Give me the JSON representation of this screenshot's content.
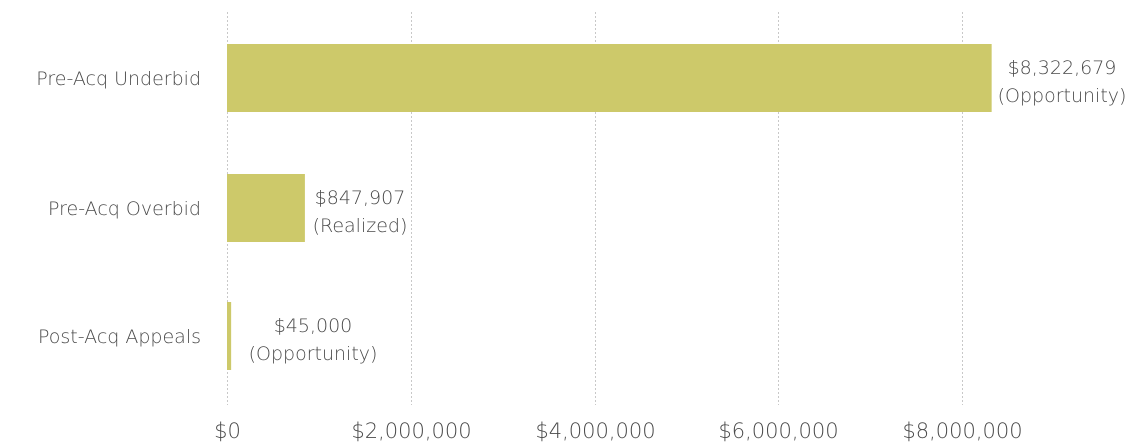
{
  "chart_data": {
    "type": "bar",
    "orientation": "horizontal",
    "title": "",
    "xlabel": "",
    "ylabel": "",
    "categories": [
      "Pre-Acq Underbid",
      "Pre-Acq Overbid",
      "Post-Acq Appeals"
    ],
    "values": [
      8322679,
      847907,
      45000
    ],
    "value_labels": [
      "$8,322,679",
      "$847,907",
      "$45,000"
    ],
    "value_notes": [
      "(Opportunity)",
      "(Realized)",
      "(Opportunity)"
    ],
    "xlim": [
      0,
      10000000
    ],
    "x_ticks": [
      0,
      2000000,
      4000000,
      6000000,
      8000000
    ],
    "x_tick_labels": [
      "$0",
      "$2,000,000",
      "$4,000,000",
      "$6,000,000",
      "$8,000,000"
    ],
    "grid": true,
    "legend": "none",
    "bar_color": "#cdc96a",
    "grid_color": "#c8c8c8",
    "text_color": "#4a4a4a"
  }
}
